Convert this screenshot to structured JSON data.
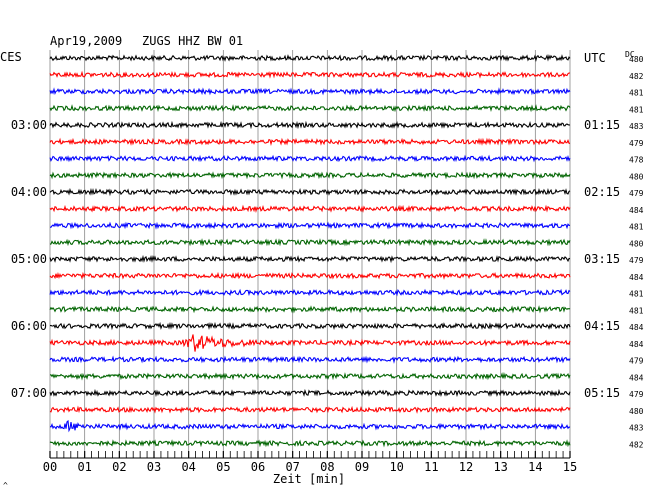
{
  "header": {
    "date": "Apr19,2009",
    "station": "ZUGS HHZ BW 01"
  },
  "labels": {
    "left_tz": "CES",
    "right_tz": "UTC",
    "dc_heading": "DC",
    "x_axis": "Zeit [min]",
    "corner_mark": "^"
  },
  "colors": {
    "trace_cycle": [
      "#000000",
      "#ff0000",
      "#0000ff",
      "#006400"
    ],
    "grid": "#888888",
    "text": "#000000"
  },
  "chart_data": {
    "type": "line",
    "title": "Apr19,2009   ZUGS HHZ BW 01",
    "xlabel": "Zeit [min]",
    "xlim": [
      0,
      15
    ],
    "x_ticks": [
      "00",
      "01",
      "02",
      "03",
      "04",
      "05",
      "06",
      "07",
      "08",
      "09",
      "10",
      "11",
      "12",
      "13",
      "14",
      "15"
    ],
    "rows": 24,
    "row_minutes": 15,
    "left_time_labels": [
      {
        "row": 4,
        "label": "03:00"
      },
      {
        "row": 8,
        "label": "04:00"
      },
      {
        "row": 12,
        "label": "05:00"
      },
      {
        "row": 16,
        "label": "06:00"
      },
      {
        "row": 20,
        "label": "07:00"
      }
    ],
    "right_time_labels": [
      {
        "row": 0,
        "label": "UTC"
      },
      {
        "row": 4,
        "label": "01:15"
      },
      {
        "row": 8,
        "label": "02:15"
      },
      {
        "row": 12,
        "label": "03:15"
      },
      {
        "row": 16,
        "label": "04:15"
      },
      {
        "row": 20,
        "label": "05:15"
      }
    ],
    "dc_offsets": [
      480,
      482,
      481,
      481,
      483,
      479,
      478,
      480,
      479,
      484,
      481,
      480,
      479,
      484,
      481,
      481,
      484,
      484,
      479,
      484,
      479,
      480,
      483,
      482
    ],
    "events": [
      {
        "row": 17,
        "start_min": 3.8,
        "end_min": 6.0,
        "amplitude": "strong"
      },
      {
        "row": 22,
        "start_min": 0.4,
        "end_min": 1.2,
        "amplitude": "weak"
      }
    ]
  }
}
